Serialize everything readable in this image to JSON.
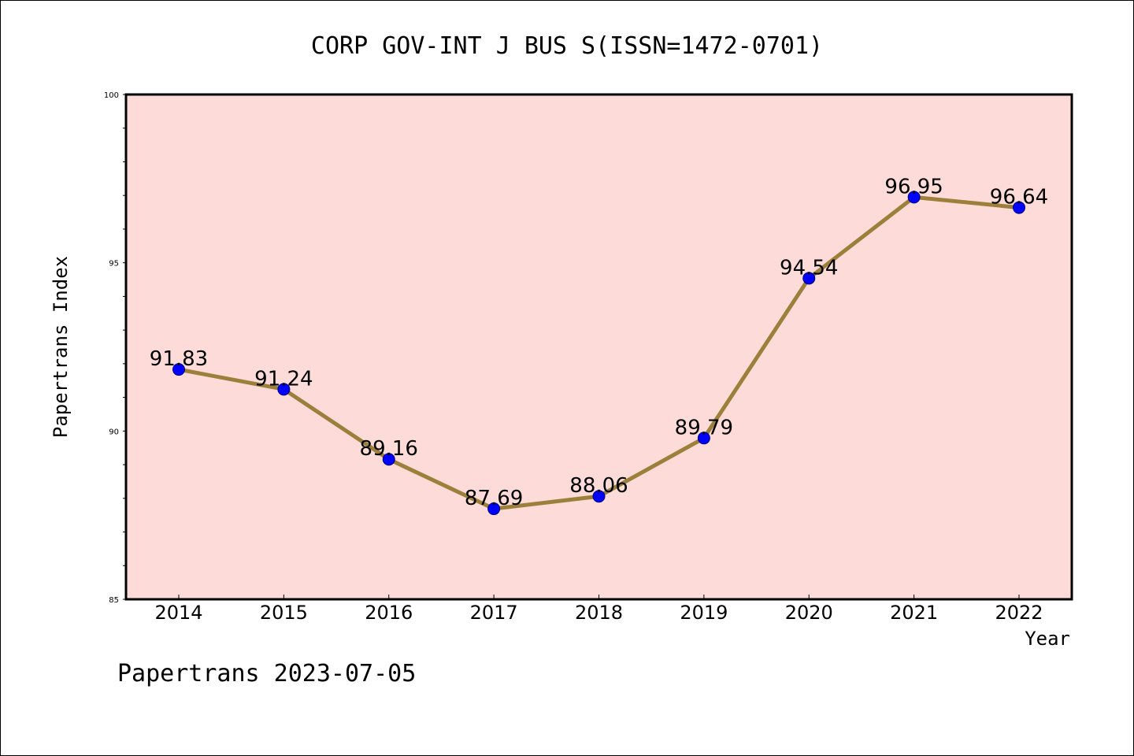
{
  "chart_data": {
    "type": "line",
    "title": "CORP GOV-INT J BUS S(ISSN=1472-0701)",
    "xlabel": "Year",
    "ylabel": "Papertrans Index",
    "categories": [
      "2014",
      "2015",
      "2016",
      "2017",
      "2018",
      "2019",
      "2020",
      "2021",
      "2022"
    ],
    "values": [
      91.83,
      91.24,
      89.16,
      87.69,
      88.06,
      89.79,
      94.54,
      96.95,
      96.64
    ],
    "data_labels": [
      "91.83",
      "91.24",
      "89.16",
      "87.69",
      "88.06",
      "89.79",
      "94.54",
      "96.95",
      "96.64"
    ],
    "ylim": [
      85,
      100
    ],
    "yticks": [
      85,
      90,
      95,
      100
    ],
    "ytick_labels": [
      "85",
      "90",
      "95",
      "100"
    ],
    "y_minor_step": 1,
    "grid": false,
    "legend": "none",
    "colors": {
      "plot_background": "#fddbd8",
      "line": "#9b7f3a",
      "marker": "#0000ff",
      "marker_edge": "#00007a"
    }
  },
  "footer": {
    "watermark": "Papertrans 2023-07-05"
  }
}
